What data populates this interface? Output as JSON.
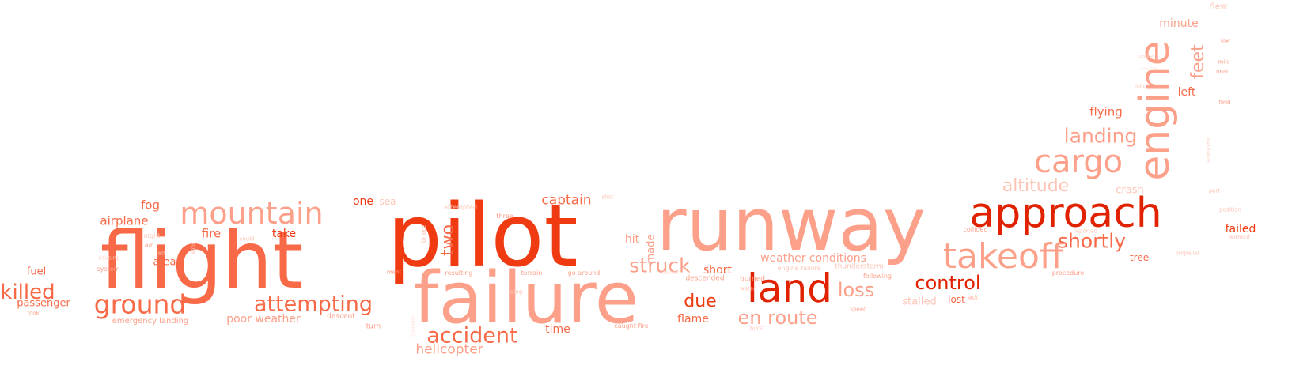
{
  "palette": {
    "dark": "#e02200",
    "red": "#f03b12",
    "mid": "#f86a47",
    "light": "#fca08a",
    "pale": "#fdc4b6",
    "faint": "#fee0d8"
  },
  "words": [
    {
      "text": "runway",
      "tone": "light"
    },
    {
      "text": "pilot",
      "tone": "red"
    },
    {
      "text": "flight",
      "tone": "mid"
    },
    {
      "text": "failure",
      "tone": "light"
    },
    {
      "text": "approach",
      "tone": "dark"
    },
    {
      "text": "engine",
      "tone": "light"
    },
    {
      "text": "land",
      "tone": "dark"
    },
    {
      "text": "takeoff",
      "tone": "light"
    },
    {
      "text": "cargo",
      "tone": "light"
    },
    {
      "text": "mountain",
      "tone": "light"
    },
    {
      "text": "ground",
      "tone": "mid"
    },
    {
      "text": "attempting",
      "tone": "mid"
    },
    {
      "text": "accident",
      "tone": "mid"
    },
    {
      "text": "killed",
      "tone": "mid"
    },
    {
      "text": "landing",
      "tone": "light"
    },
    {
      "text": "shortly",
      "tone": "mid"
    },
    {
      "text": "struck",
      "tone": "light"
    },
    {
      "text": "control",
      "tone": "dark"
    },
    {
      "text": "en route",
      "tone": "light"
    },
    {
      "text": "loss",
      "tone": "light"
    },
    {
      "text": "due",
      "tone": "red"
    },
    {
      "text": "altitude",
      "tone": "pale"
    },
    {
      "text": "two",
      "tone": "mid"
    },
    {
      "text": "feet",
      "tone": "light"
    },
    {
      "text": "helicopter",
      "tone": "light"
    },
    {
      "text": "captain",
      "tone": "mid"
    },
    {
      "text": "weather conditions",
      "tone": "light"
    },
    {
      "text": "poor weather",
      "tone": "light"
    },
    {
      "text": "flying",
      "tone": "mid"
    },
    {
      "text": "minute",
      "tone": "light"
    },
    {
      "text": "left",
      "tone": "mid"
    },
    {
      "text": "airplane",
      "tone": "mid"
    },
    {
      "text": "fog",
      "tone": "mid"
    },
    {
      "text": "fire",
      "tone": "mid"
    },
    {
      "text": "take",
      "tone": "red"
    },
    {
      "text": "one",
      "tone": "red"
    },
    {
      "text": "sea",
      "tone": "pale"
    },
    {
      "text": "hit",
      "tone": "light"
    },
    {
      "text": "made",
      "tone": "light"
    },
    {
      "text": "short",
      "tone": "mid"
    },
    {
      "text": "flame",
      "tone": "mid"
    },
    {
      "text": "time",
      "tone": "mid"
    },
    {
      "text": "crash",
      "tone": "pale"
    },
    {
      "text": "failed",
      "tone": "red"
    },
    {
      "text": "tree",
      "tone": "mid"
    },
    {
      "text": "lost",
      "tone": "mid"
    },
    {
      "text": "stalled",
      "tone": "pale"
    },
    {
      "text": "fuel",
      "tone": "mid"
    },
    {
      "text": "area",
      "tone": "mid"
    },
    {
      "text": "passenger",
      "tone": "mid"
    },
    {
      "text": "flew",
      "tone": "pale"
    },
    {
      "text": "emergency landing",
      "tone": "light"
    },
    {
      "text": "descent",
      "tone": "light"
    },
    {
      "text": "turn",
      "tone": "light"
    },
    {
      "text": "caught fire",
      "tone": "light"
    },
    {
      "text": "burst",
      "tone": "pale"
    },
    {
      "text": "descended",
      "tone": "light"
    },
    {
      "text": "burned",
      "tone": "light"
    },
    {
      "text": "water",
      "tone": "pale"
    },
    {
      "text": "resulting",
      "tone": "light"
    },
    {
      "text": "go around",
      "tone": "light"
    },
    {
      "text": "terrain",
      "tone": "light"
    },
    {
      "text": "three",
      "tone": "light"
    },
    {
      "text": "attempted",
      "tone": "pale"
    },
    {
      "text": "shot",
      "tone": "pale"
    },
    {
      "text": "night",
      "tone": "pale"
    },
    {
      "text": "air",
      "tone": "light"
    },
    {
      "text": "system",
      "tone": "light"
    },
    {
      "text": "causing",
      "tone": "pale"
    },
    {
      "text": "took",
      "tone": "light"
    },
    {
      "text": "could",
      "tone": "pale"
    },
    {
      "text": "led",
      "tone": "pale"
    },
    {
      "text": "error",
      "tone": "pale"
    },
    {
      "text": "brake",
      "tone": "pale"
    },
    {
      "text": "ment",
      "tone": "light"
    },
    {
      "text": "engine failure",
      "tone": "pale"
    },
    {
      "text": "thunderstorm",
      "tone": "pale"
    },
    {
      "text": "following",
      "tone": "light"
    },
    {
      "text": "procedure",
      "tone": "light"
    },
    {
      "text": "propeller",
      "tone": "pale"
    },
    {
      "text": "collided",
      "tone": "light"
    },
    {
      "text": "reported",
      "tone": "pale"
    },
    {
      "text": "position",
      "tone": "pale"
    },
    {
      "text": "without",
      "tone": "pale"
    },
    {
      "text": "part",
      "tone": "pale"
    },
    {
      "text": "speed",
      "tone": "light"
    },
    {
      "text": "ack",
      "tone": "light"
    },
    {
      "text": "wing",
      "tone": "pale"
    },
    {
      "text": "power",
      "tone": "pale"
    },
    {
      "text": "course",
      "tone": "faint"
    },
    {
      "text": "ight",
      "tone": "pale"
    },
    {
      "text": "low",
      "tone": "light"
    },
    {
      "text": "mile",
      "tone": "light"
    },
    {
      "text": "near",
      "tone": "light"
    },
    {
      "text": "field",
      "tone": "light"
    },
    {
      "text": "landing gear",
      "tone": "pale"
    },
    {
      "text": "aboard",
      "tone": "faint"
    },
    {
      "text": "condition",
      "tone": "faint"
    }
  ]
}
